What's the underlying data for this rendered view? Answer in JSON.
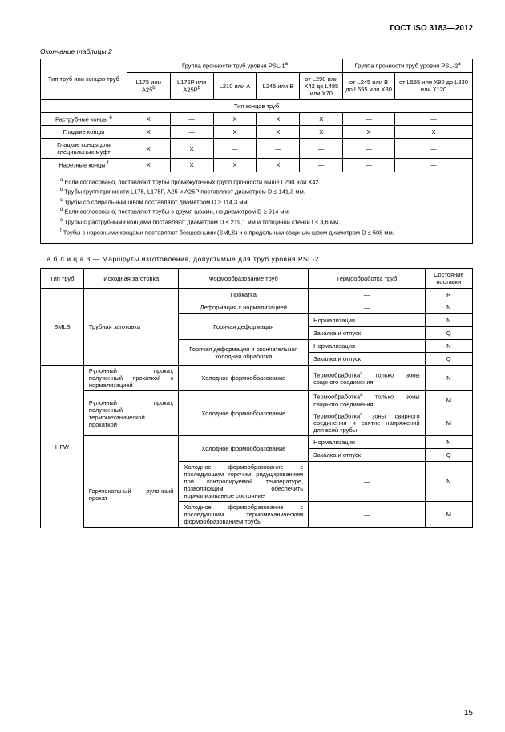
{
  "docHeader": "ГОСТ ISO 3183—2012",
  "pageNumber": "15",
  "table2": {
    "caption": "Окончание таблицы 2",
    "colA": "Тип труб или концов труб",
    "groupPSL1": "Группа прочности труб уровня PSL-1",
    "groupPSL2": "Группа прочности труб уровня PSL-2",
    "sup_a": "a",
    "c1": "L175 или A25",
    "c2": "L175P или A25P",
    "c3": "L210 или A",
    "c4": "L245 или B",
    "c5": "от L290 или X42 до L485 или X70",
    "c6": "от L245 или B до L555 или X80",
    "c7": "от L555 или X80 до L830 или X120",
    "sup_b": "b",
    "sectionTitle": "Тип концов труб",
    "rows": [
      {
        "label": "Раструбные концы ",
        "sup": "e",
        "v": [
          "X",
          "—",
          "X",
          "X",
          "X",
          "—",
          "—"
        ]
      },
      {
        "label": "Гладкие концы",
        "sup": "",
        "v": [
          "X",
          "—",
          "X",
          "X",
          "X",
          "X",
          "X"
        ]
      },
      {
        "label": "Гладкие концы для специальных муфт",
        "sup": "",
        "v": [
          "X",
          "X",
          "—",
          "—",
          "—",
          "—",
          "—"
        ]
      },
      {
        "label": "Нарезные концы ",
        "sup": "f",
        "v": [
          "X",
          "X",
          "X",
          "X",
          "—",
          "—",
          "—"
        ]
      }
    ],
    "notes": [
      {
        "sup": "a",
        "t": " Если согласовано, поставляют трубы промежуточных групп прочности выше L290 или X42."
      },
      {
        "sup": "b",
        "t": " Трубы групп прочности L175, L175P, A25 и A25P поставляют диаметром D ≤ 141,3 мм."
      },
      {
        "sup": "c",
        "t": " Трубы со спиральным швом поставляют диаметром  D ≥ 114,3 мм."
      },
      {
        "sup": "d",
        "t": " Если согласовано, поставляют трубы с двумя швами, но диаметром  D ≥ 914 мм."
      },
      {
        "sup": "e",
        "t": " Трубы с раструбными концами поставляют диаметром D ≤ 219,1 мм и толщиной стенки t ≤ 3,6 мм."
      },
      {
        "sup": "f",
        "t": " Трубы с нарезными концами поставляют бесшовными (SMLS) и с продольным сварным швом диаметром D ≤ 508 мм."
      }
    ]
  },
  "table3": {
    "title1": "Т а б л и ц а  3",
    "title2": " — Маршруты изготовления, допустимые для труб уровня PSL-2",
    "headers": [
      "Тип труб",
      "Исходная заготовка",
      "Формообразование труб",
      "Термообработка труб",
      "Состояние поставки"
    ],
    "smls": "SMLS",
    "smlsBlank": "Трубная заготовка",
    "hfw": "HFW",
    "rows": [
      {
        "f": "Прокатка",
        "h": "—",
        "s": "R"
      },
      {
        "f": "Деформация с нормализацией",
        "h": "—",
        "s": "N"
      },
      {
        "f": "Горячая деформация",
        "h": "Нормализация",
        "s": "N"
      },
      {
        "h": "Закалка и отпуск",
        "s": "Q"
      },
      {
        "f": "Горячая деформация и окончательная холодная обработка",
        "h": "Нормализация",
        "s": "N"
      },
      {
        "h": "Закалка и отпуск",
        "s": "Q"
      }
    ],
    "hfwRows": [
      {
        "b": "Рулонный прокат, полученный прокаткой с нормализацией",
        "f": "Холодное формообразование",
        "h": "Термообработка",
        "hsup": "a",
        "h2": " только зоны сварного соединения",
        "s": "N"
      },
      {
        "b": "Рулонный прокат, полученный термомеханической прокаткой",
        "f": "Холодное формообразование",
        "h": "Термообработка",
        "hsup": "a",
        "h2": " только зоны сварного соединения",
        "s": "M"
      },
      {
        "h": "Термообработка",
        "hsup": "a",
        "h2": " зоны сварного соединения и снятие напряжений для всей трубы",
        "s": "M"
      },
      {
        "b": "",
        "f": "Холодное формообразование",
        "h": "Нормализация",
        "s": "N"
      },
      {
        "h": "Закалка и отпуск",
        "s": "Q"
      },
      {
        "b": "Горячекатаный рулонный прокат",
        "f": "Холодное формообразование с последующим горячим редуцированием при контролируемой температуре, позволяющим обеспечить нормализованное состояние",
        "h": "—",
        "s": "N"
      },
      {
        "f": "Холодное формообразование с последующим термомеханическим формообразованием трубы",
        "h": "—",
        "s": "M"
      }
    ]
  }
}
